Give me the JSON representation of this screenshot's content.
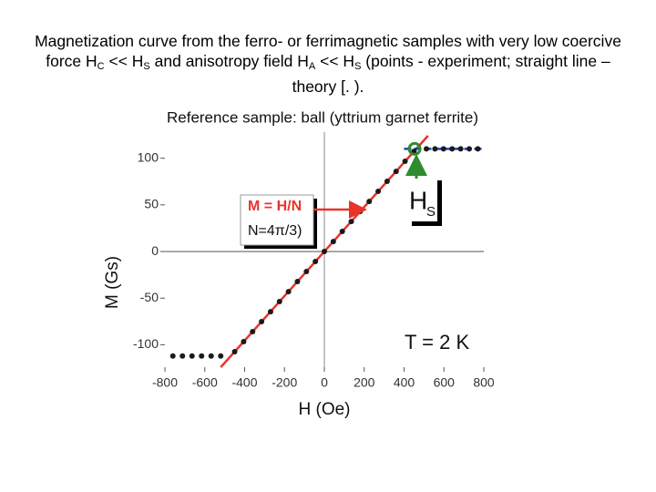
{
  "heading": {
    "parts": [
      "Magnetization curve from the ferro- or ferrimagnetic samples with very low coercive force H",
      "C",
      " << H",
      "S",
      " and anisotropy field H",
      "A",
      " << H",
      "S",
      " (points - experiment; straight line – theory [. )."
    ]
  },
  "chart_data": {
    "type": "scatter",
    "title": "Reference sample: ball (yttrium garnet ferrite)",
    "x_label": "H (Oe)",
    "y_label": "M (Gs)",
    "xlim": [
      -800,
      800
    ],
    "ylim": [
      -124,
      128
    ],
    "xticks": [
      -800,
      -600,
      -400,
      -200,
      0,
      200,
      400,
      600,
      800
    ],
    "yticks": [
      -100,
      -50,
      0,
      50,
      100
    ],
    "series": [
      {
        "role": "experiment",
        "color": "#1a1a1a",
        "x": [
          -760,
          -712,
          -664,
          -616,
          -568,
          -520,
          -450,
          -405,
          -360,
          -315,
          -270,
          -225,
          -180,
          -135,
          -90,
          -45,
          0,
          45,
          90,
          135,
          180,
          225,
          270,
          315,
          360,
          405,
          450,
          512,
          555,
          598,
          641,
          684,
          727,
          770
        ],
        "values": [
          -112,
          -112,
          -112,
          -112,
          -112,
          -112,
          -107.4,
          -96.7,
          -85.9,
          -75.2,
          -64.5,
          -53.7,
          -43.0,
          -32.2,
          -21.5,
          -10.7,
          0,
          10.7,
          21.5,
          32.2,
          43.0,
          53.7,
          64.5,
          75.2,
          85.9,
          96.7,
          107.4,
          110,
          110,
          110,
          110,
          110,
          110,
          110
        ]
      },
      {
        "role": "theory",
        "color": "#e8332a",
        "x": [
          -520,
          520
        ],
        "values": [
          -124.1,
          124.1
        ]
      },
      {
        "role": "saturation",
        "color": "#1f3fbf",
        "x": [
          400,
          800
        ],
        "values": [
          110,
          110
        ]
      }
    ],
    "hs_marker": {
      "x": 453,
      "y": 110,
      "color": "#2e8b2e"
    },
    "annotations": {
      "formula": "M = H/N",
      "n_value": "N=4π/3)",
      "hs_main": "H",
      "hs_sub": "S",
      "temperature": "T = 2 K"
    }
  }
}
